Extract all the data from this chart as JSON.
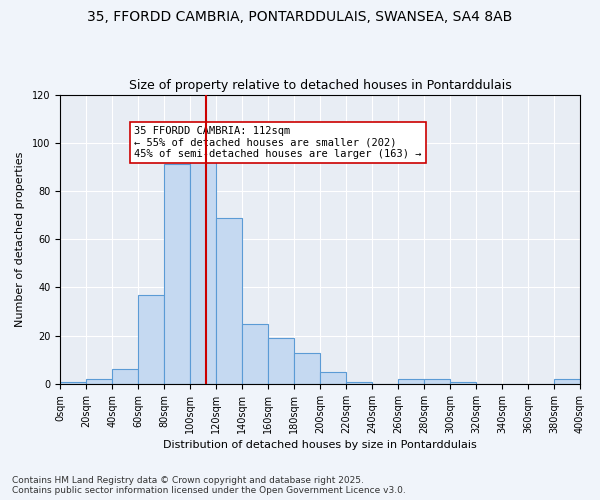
{
  "title_line1": "35, FFORDD CAMBRIA, PONTARDDULAIS, SWANSEA, SA4 8AB",
  "title_line2": "Size of property relative to detached houses in Pontarddulais",
  "xlabel": "Distribution of detached houses by size in Pontarddulais",
  "ylabel": "Number of detached properties",
  "bin_edges": [
    0,
    20,
    40,
    60,
    80,
    100,
    120,
    140,
    160,
    180,
    200,
    220,
    240,
    260,
    280,
    300,
    320,
    340,
    360,
    380,
    400
  ],
  "bar_heights": [
    1,
    2,
    6,
    37,
    91,
    93,
    69,
    25,
    19,
    13,
    5,
    1,
    0,
    2,
    2,
    1,
    0,
    0,
    0,
    2
  ],
  "bar_color": "#c5d9f1",
  "bar_edge_color": "#5b9bd5",
  "vline_x": 112,
  "vline_color": "#cc0000",
  "annotation_text": "35 FFORDD CAMBRIA: 112sqm\n← 55% of detached houses are smaller (202)\n45% of semi-detached houses are larger (163) →",
  "annotation_box_color": "#ffffff",
  "annotation_box_edge_color": "#cc0000",
  "ylim": [
    0,
    120
  ],
  "yticks": [
    0,
    20,
    40,
    60,
    80,
    100,
    120
  ],
  "background_color": "#e8edf4",
  "footer_text": "Contains HM Land Registry data © Crown copyright and database right 2025.\nContains public sector information licensed under the Open Government Licence v3.0.",
  "title_fontsize": 10,
  "subtitle_fontsize": 9,
  "axis_label_fontsize": 8,
  "tick_fontsize": 7,
  "annotation_fontsize": 7.5
}
